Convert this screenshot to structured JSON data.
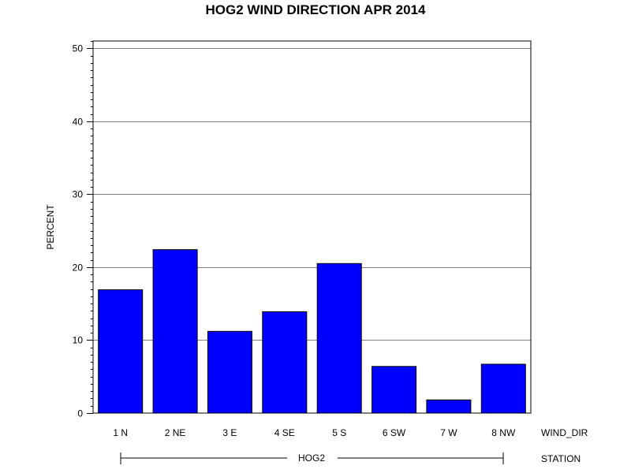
{
  "chart_data": {
    "type": "bar",
    "title": "HOG2 WIND DIRECTION APR 2014",
    "ylabel": "PERCENT",
    "xlabel": "WIND_DIR",
    "group_axis_label": "STATION",
    "group_label": "HOG2",
    "categories": [
      "1 N",
      "2 NE",
      "3 E",
      "4 SE",
      "5 S",
      "6 SW",
      "7 W",
      "8 NW"
    ],
    "values": [
      16.9,
      22.4,
      11.2,
      13.9,
      20.5,
      6.4,
      1.8,
      6.7
    ],
    "ylim": [
      0,
      50
    ],
    "yticks": [
      "0",
      "10",
      "20",
      "30",
      "40",
      "50"
    ],
    "grid": true,
    "bar_color": "#0000ff"
  }
}
